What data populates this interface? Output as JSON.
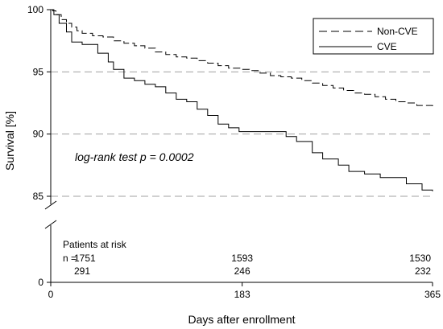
{
  "chart_data": {
    "type": "line",
    "title": "",
    "xlabel": "Days after enrollment",
    "ylabel": "Survival [%]",
    "x_ticks": [
      "0",
      "183",
      "365"
    ],
    "y_ticks": [
      "100",
      "95",
      "90",
      "85",
      "0"
    ],
    "x_range": [
      0,
      365
    ],
    "y_range_upper": [
      83.5,
      100
    ],
    "axis_break": "between 0 and 85",
    "grid": "horizontal dashed at 85, 90, 95",
    "legend_position": "top-right",
    "annotation": "log-rank test p = 0.0002",
    "series": [
      {
        "name": "Non-CVE",
        "line_style": "dashed",
        "points": [
          [
            0,
            100
          ],
          [
            2,
            99.9
          ],
          [
            5,
            99.6
          ],
          [
            10,
            99.2
          ],
          [
            15,
            98.9
          ],
          [
            20,
            98.6
          ],
          [
            25,
            98.3
          ],
          [
            30,
            98.1
          ],
          [
            40,
            97.9
          ],
          [
            50,
            97.8
          ],
          [
            60,
            97.5
          ],
          [
            70,
            97.3
          ],
          [
            80,
            97.1
          ],
          [
            90,
            96.9
          ],
          [
            100,
            96.6
          ],
          [
            110,
            96.4
          ],
          [
            120,
            96.2
          ],
          [
            130,
            96.1
          ],
          [
            140,
            95.9
          ],
          [
            150,
            95.7
          ],
          [
            160,
            95.5
          ],
          [
            170,
            95.3
          ],
          [
            183,
            95.2
          ],
          [
            190,
            95.1
          ],
          [
            200,
            94.9
          ],
          [
            210,
            94.7
          ],
          [
            220,
            94.6
          ],
          [
            230,
            94.5
          ],
          [
            240,
            94.3
          ],
          [
            250,
            94.1
          ],
          [
            260,
            93.9
          ],
          [
            270,
            93.7
          ],
          [
            280,
            93.5
          ],
          [
            290,
            93.3
          ],
          [
            300,
            93.2
          ],
          [
            310,
            93.0
          ],
          [
            320,
            92.8
          ],
          [
            330,
            92.6
          ],
          [
            340,
            92.5
          ],
          [
            350,
            92.3
          ],
          [
            365,
            92.2
          ]
        ]
      },
      {
        "name": "CVE",
        "line_style": "solid",
        "points": [
          [
            0,
            100
          ],
          [
            3,
            99.6
          ],
          [
            8,
            98.9
          ],
          [
            15,
            98.2
          ],
          [
            20,
            97.4
          ],
          [
            30,
            97.2
          ],
          [
            45,
            96.5
          ],
          [
            55,
            95.8
          ],
          [
            60,
            95.2
          ],
          [
            70,
            94.5
          ],
          [
            80,
            94.3
          ],
          [
            90,
            94.0
          ],
          [
            100,
            93.8
          ],
          [
            110,
            93.3
          ],
          [
            120,
            92.8
          ],
          [
            130,
            92.6
          ],
          [
            140,
            92.0
          ],
          [
            150,
            91.5
          ],
          [
            160,
            90.8
          ],
          [
            170,
            90.5
          ],
          [
            180,
            90.2
          ],
          [
            200,
            90.2
          ],
          [
            220,
            90.2
          ],
          [
            225,
            89.8
          ],
          [
            235,
            89.4
          ],
          [
            250,
            88.5
          ],
          [
            260,
            88.0
          ],
          [
            275,
            87.5
          ],
          [
            285,
            87.0
          ],
          [
            300,
            86.8
          ],
          [
            315,
            86.5
          ],
          [
            340,
            86.0
          ],
          [
            355,
            85.5
          ],
          [
            365,
            85.4
          ]
        ]
      }
    ],
    "patients_at_risk": {
      "label": "Patients at risk",
      "n_label": "n =",
      "rows": [
        {
          "series": "Non-CVE",
          "values": [
            "1751",
            "1593",
            "1530"
          ]
        },
        {
          "series": "CVE",
          "values": [
            "291",
            "246",
            "232"
          ]
        }
      ]
    }
  }
}
